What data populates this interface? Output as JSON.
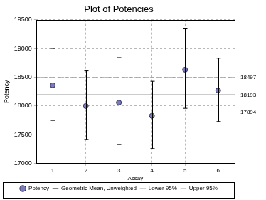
{
  "chart_data": {
    "type": "scatter",
    "title": "Plot of Potencies",
    "x_label": "Assay",
    "y_label": "Potency",
    "xlim": [
      0.5,
      6.5
    ],
    "xticks": [
      1,
      2,
      3,
      4,
      5,
      6
    ],
    "ylim": [
      17000,
      19500
    ],
    "yticks": [
      17000,
      17500,
      18000,
      18500,
      19000,
      19500
    ],
    "grid": true,
    "legend": "bottom",
    "series": [
      {
        "name": "Potency",
        "type": "scatter",
        "marker": "circle",
        "color": "#7b7bb8",
        "x": [
          1,
          2,
          3,
          4,
          5,
          6
        ],
        "values": [
          18360,
          18000,
          18060,
          17830,
          18630,
          18270
        ],
        "lower": [
          17750,
          17420,
          17330,
          17260,
          17960,
          17730
        ],
        "upper": [
          19000,
          18610,
          18840,
          18430,
          19340,
          18830
        ]
      },
      {
        "name": "Geometric Mean, Unweighted",
        "type": "line",
        "line_style": "solid",
        "color": "#000000",
        "values": [
          18193
        ],
        "data_labels": true
      },
      {
        "name": "Lower 95%",
        "type": "line",
        "line_style": "dashed",
        "color": "#a0a0a0",
        "values": [
          17894
        ],
        "data_labels": true
      },
      {
        "name": "Upper 95%",
        "type": "line",
        "line_style": "dashed",
        "color": "#a0a0a0",
        "values": [
          18497
        ],
        "data_labels": true
      }
    ]
  }
}
